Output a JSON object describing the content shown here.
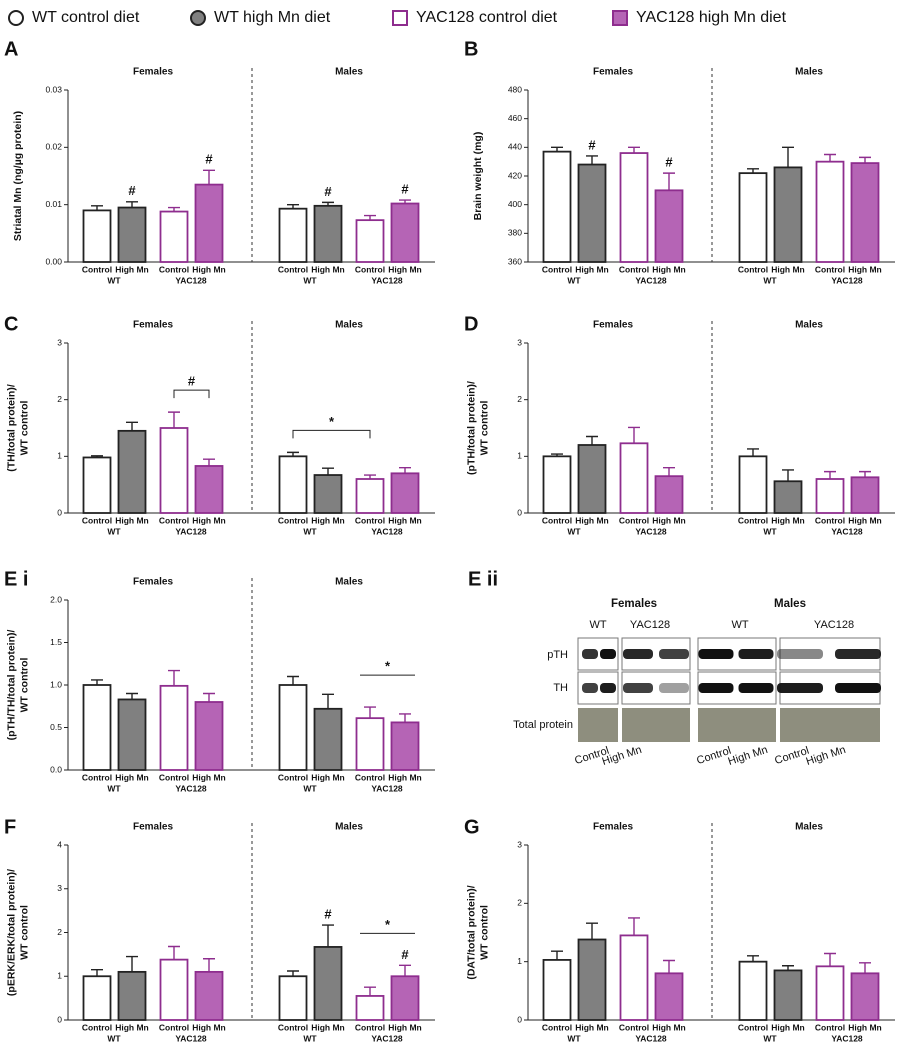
{
  "legend": [
    {
      "name": "WT control diet",
      "marker": "circle",
      "fill": "#ffffff",
      "stroke": "#222222"
    },
    {
      "name": "WT high Mn diet",
      "marker": "circle",
      "fill": "#808080",
      "stroke": "#222222"
    },
    {
      "name": "YAC128 control diet",
      "marker": "square",
      "fill": "#ffffff",
      "stroke": "#8e2d8e"
    },
    {
      "name": "YAC128 high Mn diet",
      "marker": "square",
      "fill": "#b564b5",
      "stroke": "#8e2d8e"
    }
  ],
  "chart_data": [
    {
      "type": "bar",
      "label": "A",
      "ylabel": [
        "Striatal Mn (ng/µg protein)"
      ],
      "ylim": [
        0,
        0.03
      ],
      "yticks": [
        {
          "value": 0,
          "label": "0.00"
        },
        {
          "value": 0.01,
          "label": "0.01"
        },
        {
          "value": 0.02,
          "label": "0.02"
        },
        {
          "value": 0.03,
          "label": "0.03"
        }
      ],
      "categories": [
        "Control",
        "High Mn",
        "Control",
        "High Mn"
      ],
      "genotypes": [
        "WT",
        "YAC128"
      ],
      "groups": [
        {
          "name": "Females",
          "values": [
            0.009,
            0.0095,
            0.0088,
            0.0135
          ],
          "errors": [
            0.0008,
            0.001,
            0.0007,
            0.0025
          ],
          "annotations": [
            {
              "label": "#",
              "bars": [
                1
              ]
            },
            {
              "label": "#",
              "bars": [
                3
              ]
            }
          ]
        },
        {
          "name": "Males",
          "values": [
            0.0093,
            0.0098,
            0.0073,
            0.0102
          ],
          "errors": [
            0.0007,
            0.0006,
            0.0008,
            0.0006
          ],
          "annotations": [
            {
              "label": "#",
              "bars": [
                1
              ]
            },
            {
              "label": "#",
              "bars": [
                3
              ]
            }
          ]
        }
      ]
    },
    {
      "type": "bar",
      "label": "B",
      "ylabel": [
        "Brain weight (mg)"
      ],
      "ylim": [
        360,
        480
      ],
      "yticks": [
        360,
        380,
        400,
        420,
        440,
        460,
        480
      ],
      "categories": [
        "Control",
        "High Mn",
        "Control",
        "High Mn"
      ],
      "genotypes": [
        "WT",
        "YAC128"
      ],
      "groups": [
        {
          "name": "Females",
          "values": [
            437,
            428,
            436,
            410
          ],
          "errors": [
            3,
            6,
            4,
            12
          ],
          "annotations": [
            {
              "label": "#",
              "bars": [
                1
              ]
            },
            {
              "label": "#",
              "bars": [
                3
              ]
            }
          ]
        },
        {
          "name": "Males",
          "values": [
            422,
            426,
            430,
            429
          ],
          "errors": [
            3,
            14,
            5,
            4
          ],
          "annotations": []
        }
      ]
    },
    {
      "type": "bar",
      "label": "C",
      "ylabel": [
        "(TH/total protein)/",
        "WT control"
      ],
      "ylim": [
        0,
        3
      ],
      "yticks": [
        0,
        1,
        2,
        3
      ],
      "categories": [
        "Control",
        "High Mn",
        "Control",
        "High Mn"
      ],
      "genotypes": [
        "WT",
        "YAC128"
      ],
      "groups": [
        {
          "name": "Females",
          "values": [
            0.98,
            1.45,
            1.5,
            0.83
          ],
          "errors": [
            0.03,
            0.15,
            0.28,
            0.12
          ],
          "annotations": [
            {
              "label": "#",
              "bars": [
                2,
                3
              ],
              "style": "bracket"
            }
          ]
        },
        {
          "name": "Males",
          "values": [
            1.0,
            0.67,
            0.6,
            0.7
          ],
          "errors": [
            0.07,
            0.12,
            0.07,
            0.1
          ],
          "annotations": [
            {
              "label": "*",
              "bars": [
                0,
                2
              ],
              "style": "bracket"
            }
          ]
        }
      ]
    },
    {
      "type": "bar",
      "label": "D",
      "ylabel": [
        "(pTH/total protein)/",
        "WT control"
      ],
      "ylim": [
        0,
        3
      ],
      "yticks": [
        0,
        1,
        2,
        3
      ],
      "categories": [
        "Control",
        "High Mn",
        "Control",
        "High Mn"
      ],
      "genotypes": [
        "WT",
        "YAC128"
      ],
      "groups": [
        {
          "name": "Females",
          "values": [
            1.0,
            1.2,
            1.23,
            0.65
          ],
          "errors": [
            0.04,
            0.15,
            0.28,
            0.15
          ],
          "annotations": []
        },
        {
          "name": "Males",
          "values": [
            1.0,
            0.56,
            0.6,
            0.63
          ],
          "errors": [
            0.13,
            0.2,
            0.13,
            0.1
          ],
          "annotations": []
        }
      ]
    },
    {
      "type": "bar",
      "label": "E i",
      "ylabel": [
        "(pTH/TH/total protein)/",
        "WT control"
      ],
      "ylim": [
        0,
        2
      ],
      "yticks": [
        {
          "value": 0,
          "label": "0.0"
        },
        {
          "value": 0.5,
          "label": "0.5"
        },
        {
          "value": 1,
          "label": "1.0"
        },
        {
          "value": 1.5,
          "label": "1.5"
        },
        {
          "value": 2,
          "label": "2.0"
        }
      ],
      "categories": [
        "Control",
        "High Mn",
        "Control",
        "High Mn"
      ],
      "genotypes": [
        "WT",
        "YAC128"
      ],
      "groups": [
        {
          "name": "Females",
          "values": [
            1.0,
            0.83,
            0.99,
            0.8
          ],
          "errors": [
            0.06,
            0.07,
            0.18,
            0.1
          ],
          "annotations": []
        },
        {
          "name": "Males",
          "values": [
            1.0,
            0.72,
            0.61,
            0.56
          ],
          "errors": [
            0.1,
            0.17,
            0.13,
            0.1
          ],
          "annotations": [
            {
              "label": "*",
              "bars": [
                2,
                3
              ],
              "style": "line"
            }
          ]
        }
      ]
    },
    {
      "type": "bar",
      "label": "F",
      "ylabel": [
        "(pERK/ERK/total protein)/",
        "WT control"
      ],
      "ylim": [
        0,
        4
      ],
      "yticks": [
        0,
        1,
        2,
        3,
        4
      ],
      "categories": [
        "Control",
        "High Mn",
        "Control",
        "High Mn"
      ],
      "genotypes": [
        "WT",
        "YAC128"
      ],
      "groups": [
        {
          "name": "Females",
          "values": [
            1.0,
            1.1,
            1.38,
            1.1
          ],
          "errors": [
            0.15,
            0.35,
            0.3,
            0.3
          ],
          "annotations": []
        },
        {
          "name": "Males",
          "values": [
            1.0,
            1.67,
            0.55,
            1.0
          ],
          "errors": [
            0.12,
            0.5,
            0.2,
            0.25
          ],
          "annotations": [
            {
              "label": "#",
              "bars": [
                1
              ]
            },
            {
              "label": "*",
              "bars": [
                2,
                3
              ],
              "style": "line"
            },
            {
              "label": "#",
              "bars": [
                3
              ]
            }
          ]
        }
      ]
    },
    {
      "type": "bar",
      "label": "G",
      "ylabel": [
        "(DAT/total protein)/",
        "WT control"
      ],
      "ylim": [
        0,
        3
      ],
      "yticks": [
        0,
        1,
        2,
        3
      ],
      "categories": [
        "Control",
        "High Mn",
        "Control",
        "High Mn"
      ],
      "genotypes": [
        "WT",
        "YAC128"
      ],
      "groups": [
        {
          "name": "Females",
          "values": [
            1.03,
            1.38,
            1.45,
            0.8
          ],
          "errors": [
            0.15,
            0.28,
            0.3,
            0.22
          ],
          "annotations": []
        },
        {
          "name": "Males",
          "values": [
            1.0,
            0.85,
            0.92,
            0.8
          ],
          "errors": [
            0.1,
            0.08,
            0.22,
            0.18
          ],
          "annotations": []
        }
      ]
    }
  ],
  "blot": {
    "label": "E ii",
    "groups": [
      "Females",
      "Males"
    ],
    "genotypes": [
      "WT",
      "YAC128",
      "WT",
      "YAC128"
    ],
    "rows": [
      "pTH",
      "TH",
      "Total protein"
    ],
    "lane_labels": [
      "Control",
      "High Mn",
      "Control",
      "High Mn",
      "Control",
      "High Mn"
    ]
  }
}
